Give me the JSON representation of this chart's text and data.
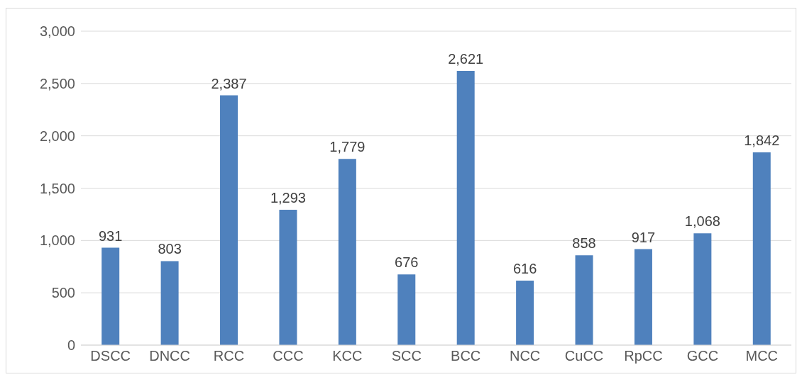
{
  "chart_data": {
    "type": "bar",
    "categories": [
      "DSCC",
      "DNCC",
      "RCC",
      "CCC",
      "KCC",
      "SCC",
      "BCC",
      "NCC",
      "CuCC",
      "RpCC",
      "GCC",
      "MCC"
    ],
    "values": [
      931,
      803,
      2387,
      1293,
      1779,
      676,
      2621,
      616,
      858,
      917,
      1068,
      1842
    ],
    "value_labels": [
      "931",
      "803",
      "2,387",
      "1,293",
      "1,779",
      "676",
      "2,621",
      "616",
      "858",
      "917",
      "1,068",
      "1,842"
    ],
    "color": "#4f81bd",
    "ylim": [
      0,
      3000
    ],
    "yticks": [
      0,
      {
        "value": 500,
        "label": "500"
      },
      {
        "value": 1000,
        "label": "1,000"
      },
      {
        "value": 1500,
        "label": "1,500"
      },
      {
        "value": 2000,
        "label": "2,000"
      },
      {
        "value": 2500,
        "label": "2,500"
      },
      {
        "value": 3000,
        "label": "3,000"
      }
    ],
    "grid": "y",
    "legend": false
  }
}
